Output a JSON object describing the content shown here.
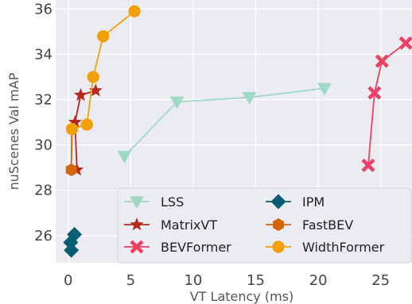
{
  "chart_data": {
    "type": "line",
    "xlabel": "VT Latency (ms)",
    "ylabel": "nuScenes Val mAP",
    "xlim": [
      -1,
      27.5
    ],
    "ylim": [
      24.8,
      36.4
    ],
    "xticks": [
      0,
      5,
      10,
      15,
      20,
      25
    ],
    "yticks": [
      26,
      28,
      30,
      32,
      34,
      36
    ],
    "grid": true,
    "background": "#ebebf2",
    "legend": {
      "placement": "bottom-right",
      "columns": 2
    },
    "series": [
      {
        "name": "LSS",
        "color": "#9fd8c3",
        "marker": "triangle-down",
        "points": [
          [
            4.5,
            29.5
          ],
          [
            8.7,
            31.9
          ],
          [
            14.5,
            32.1
          ],
          [
            20.5,
            32.5
          ]
        ]
      },
      {
        "name": "IPM",
        "color": "#0b5d73",
        "marker": "diamond",
        "points": [
          [
            0.5,
            26.05
          ],
          [
            0.2,
            25.7
          ],
          [
            0.25,
            25.35
          ]
        ]
      },
      {
        "name": "MatrixVT",
        "color": "#b5281c",
        "marker": "star",
        "points": [
          [
            0.7,
            28.9
          ],
          [
            0.55,
            31.0
          ],
          [
            1.0,
            32.2
          ],
          [
            2.2,
            32.4
          ]
        ]
      },
      {
        "name": "FastBEV",
        "color": "#d4650a",
        "marker": "hexagon",
        "points": [
          [
            0.25,
            28.9
          ],
          [
            0.3,
            30.7
          ]
        ]
      },
      {
        "name": "BEVFormer",
        "color": "#ee3f66",
        "marker": "x",
        "points": [
          [
            24.0,
            29.1
          ],
          [
            24.5,
            32.3
          ],
          [
            25.1,
            33.7
          ],
          [
            27.0,
            34.5
          ]
        ]
      },
      {
        "name": "WidthFormer",
        "color": "#f2a007",
        "marker": "circle",
        "points": [
          [
            0.3,
            30.7
          ],
          [
            1.5,
            30.9
          ],
          [
            2.0,
            33.0
          ],
          [
            2.8,
            34.8
          ],
          [
            5.3,
            35.9
          ]
        ]
      }
    ]
  }
}
